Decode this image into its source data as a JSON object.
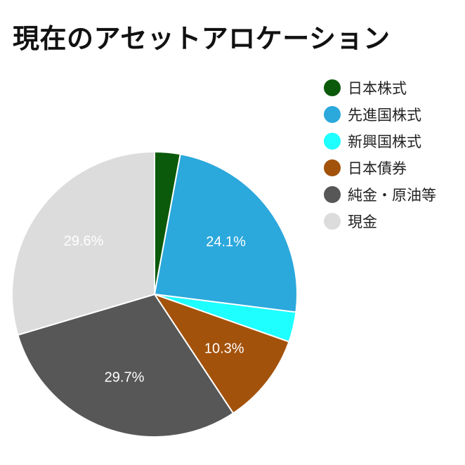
{
  "chart_data": {
    "type": "pie",
    "title": "現在のアセットアロケーション",
    "legend_position": "right",
    "slices": [
      {
        "name": "日本株式",
        "value": 2.9,
        "color": "#0b5a0b",
        "label": ""
      },
      {
        "name": "先進国株式",
        "value": 24.1,
        "color": "#2ba8dc",
        "label": "24.1%"
      },
      {
        "name": "新興国株式",
        "value": 3.4,
        "color": "#1effff",
        "label": ""
      },
      {
        "name": "日本債券",
        "value": 10.3,
        "color": "#a3520b",
        "label": "10.3%"
      },
      {
        "name": "純金・原油等",
        "value": 29.7,
        "color": "#575757",
        "label": "29.7%"
      },
      {
        "name": "現金",
        "value": 29.6,
        "color": "#dcdcdc",
        "label": "29.6%"
      }
    ]
  }
}
